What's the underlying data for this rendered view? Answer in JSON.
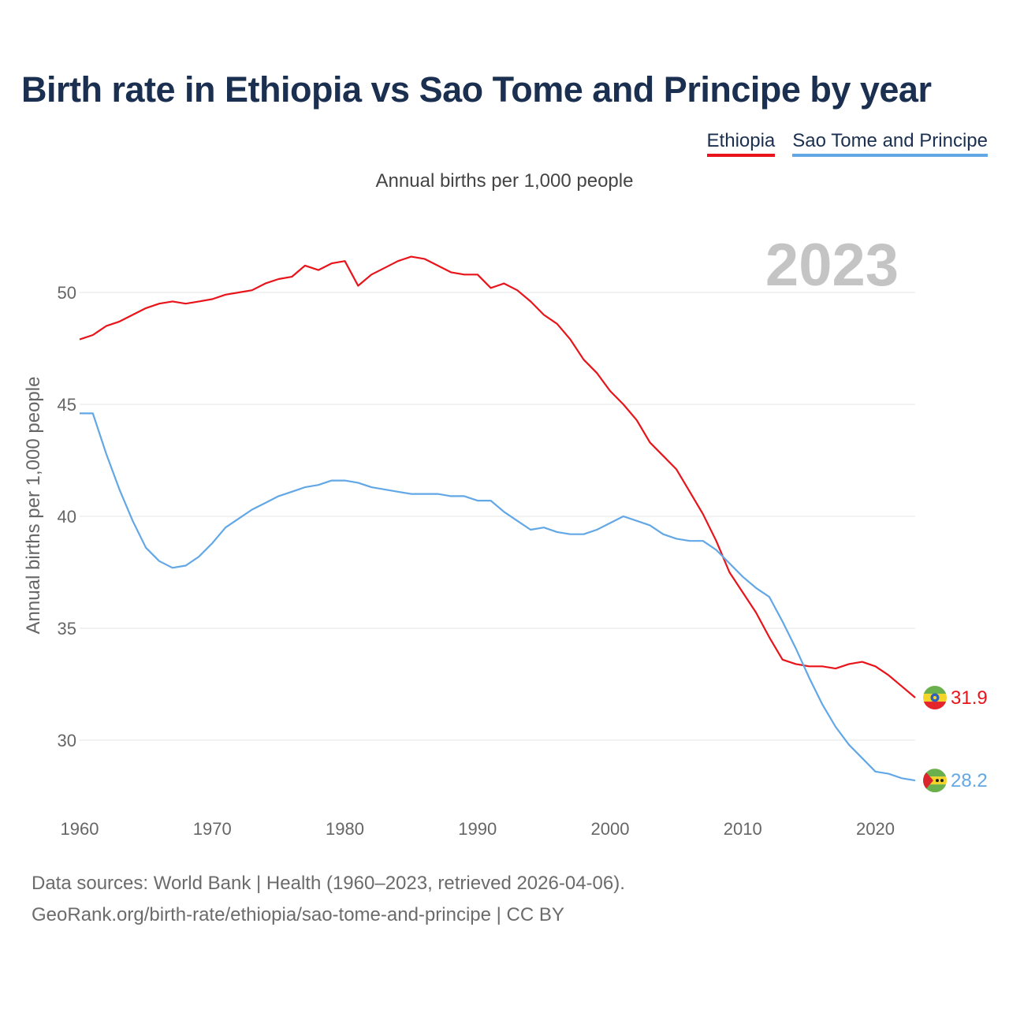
{
  "title": "Birth rate in Ethiopia vs Sao Tome and Principe by year",
  "subtitle": "Annual births per 1,000 people",
  "year_badge": "2023",
  "legend": [
    {
      "name": "Ethiopia",
      "color": "#e8141a"
    },
    {
      "name": "Sao Tome and Principe",
      "color": "#62a7e6"
    }
  ],
  "footer": {
    "line1": "Data sources: World Bank | Health (1960–2023, retrieved 2026-04-06).",
    "line2": "GeoRank.org/birth-rate/ethiopia/sao-tome-and-principe | CC BY"
  },
  "chart_data": {
    "type": "line",
    "title": "Birth rate in Ethiopia vs Sao Tome and Principe by year",
    "xlabel": "",
    "ylabel": "Annual births per 1,000 people",
    "xlim": [
      1960,
      2023
    ],
    "ylim": [
      27.5,
      52.5
    ],
    "xticks": [
      1960,
      1970,
      1980,
      1990,
      2000,
      2010,
      2020
    ],
    "yticks": [
      30,
      35,
      40,
      45,
      50
    ],
    "grid": true,
    "legend_position": "top-right",
    "x": [
      1960,
      1961,
      1962,
      1963,
      1964,
      1965,
      1966,
      1967,
      1968,
      1969,
      1970,
      1971,
      1972,
      1973,
      1974,
      1975,
      1976,
      1977,
      1978,
      1979,
      1980,
      1981,
      1982,
      1983,
      1984,
      1985,
      1986,
      1987,
      1988,
      1989,
      1990,
      1991,
      1992,
      1993,
      1994,
      1995,
      1996,
      1997,
      1998,
      1999,
      2000,
      2001,
      2002,
      2003,
      2004,
      2005,
      2006,
      2007,
      2008,
      2009,
      2010,
      2011,
      2012,
      2013,
      2014,
      2015,
      2016,
      2017,
      2018,
      2019,
      2020,
      2021,
      2022,
      2023
    ],
    "series": [
      {
        "name": "Ethiopia",
        "color": "#e8141a",
        "end_label": "31.9",
        "values": [
          47.9,
          48.1,
          48.5,
          48.7,
          49.0,
          49.3,
          49.5,
          49.6,
          49.5,
          49.6,
          49.7,
          49.9,
          50.0,
          50.1,
          50.4,
          50.6,
          50.7,
          51.2,
          51.0,
          51.3,
          51.4,
          50.3,
          50.8,
          51.1,
          51.4,
          51.6,
          51.5,
          51.2,
          50.9,
          50.8,
          50.8,
          50.2,
          50.4,
          50.1,
          49.6,
          49.0,
          48.6,
          47.9,
          47.0,
          46.4,
          45.6,
          45.0,
          44.3,
          43.3,
          42.7,
          42.1,
          41.1,
          40.1,
          38.9,
          37.5,
          36.6,
          35.7,
          34.6,
          33.6,
          33.4,
          33.3,
          33.3,
          33.2,
          33.4,
          33.5,
          33.3,
          32.9,
          32.4,
          31.9
        ]
      },
      {
        "name": "Sao Tome and Principe",
        "color": "#62a7e6",
        "end_label": "28.2",
        "values": [
          44.6,
          44.6,
          42.8,
          41.2,
          39.8,
          38.6,
          38.0,
          37.7,
          37.8,
          38.2,
          38.8,
          39.5,
          39.9,
          40.3,
          40.6,
          40.9,
          41.1,
          41.3,
          41.4,
          41.6,
          41.6,
          41.5,
          41.3,
          41.2,
          41.1,
          41.0,
          41.0,
          41.0,
          40.9,
          40.9,
          40.7,
          40.7,
          40.2,
          39.8,
          39.4,
          39.5,
          39.3,
          39.2,
          39.2,
          39.4,
          39.7,
          40.0,
          39.8,
          39.6,
          39.2,
          39.0,
          38.9,
          38.9,
          38.5,
          37.9,
          37.3,
          36.8,
          36.4,
          35.3,
          34.1,
          32.8,
          31.6,
          30.6,
          29.8,
          29.2,
          28.6,
          28.5,
          28.3,
          28.2
        ]
      }
    ]
  }
}
